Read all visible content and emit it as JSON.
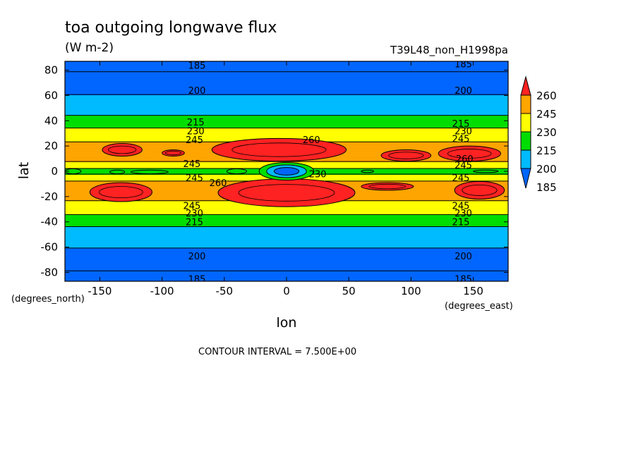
{
  "chart_data": {
    "type": "heatmap",
    "title": "toa outgoing longwave flux",
    "subtitle": "(W m-2)",
    "run_label": "T39L48_non_H1998pa",
    "xlabel": "lon",
    "ylabel": "lat",
    "x_unit_label": "(degrees_east)",
    "y_unit_label": "(degrees_north)",
    "contour_interval_text": "CONTOUR INTERVAL = 7.500E+00",
    "xlim": [
      -178,
      178
    ],
    "ylim": [
      -87,
      87
    ],
    "x_ticks": [
      -150,
      -100,
      -50,
      0,
      50,
      100,
      150
    ],
    "x_tick_labels": [
      "-150",
      "-100",
      "-50",
      "0",
      "50",
      "100",
      "150"
    ],
    "y_ticks": [
      80,
      60,
      40,
      20,
      0,
      -20,
      -40,
      -60,
      -80
    ],
    "y_tick_labels": [
      "80",
      "60",
      "40",
      "20",
      "0",
      "-20",
      "-40",
      "-60",
      "-80"
    ],
    "colorbar_levels": [
      185,
      200,
      215,
      230,
      245,
      260
    ],
    "colorbar_labels": [
      "260",
      "245",
      "230",
      "215",
      "200",
      "185"
    ],
    "colors": [
      "#0066ff",
      "#00bbff",
      "#00dd00",
      "#ffff00",
      "#ffa500",
      "#ff2222"
    ],
    "lat_profile": [
      [
        -87,
        176
      ],
      [
        -78,
        186
      ],
      [
        -66,
        195
      ],
      [
        -55,
        205
      ],
      [
        -45,
        213
      ],
      [
        -38,
        224
      ],
      [
        -32,
        233
      ],
      [
        -26,
        241
      ],
      [
        -20,
        249
      ],
      [
        -13,
        251
      ],
      [
        -8,
        246
      ],
      [
        -4,
        236
      ],
      [
        0,
        220
      ],
      [
        4,
        236
      ],
      [
        8,
        246
      ],
      [
        14,
        251
      ],
      [
        20,
        250
      ],
      [
        26,
        241
      ],
      [
        32,
        234
      ],
      [
        38,
        224
      ],
      [
        45,
        214
      ],
      [
        55,
        205
      ],
      [
        66,
        195
      ],
      [
        78,
        186
      ],
      [
        87,
        176
      ]
    ],
    "warm_regions": [
      {
        "lon": [
          -158,
          -108
        ],
        "lat": [
          -24,
          -9
        ]
      },
      {
        "lon": [
          -55,
          55
        ],
        "lat": [
          -28,
          -6
        ]
      },
      {
        "lon": [
          60,
          102
        ],
        "lat": [
          -15,
          -9
        ]
      },
      {
        "lon": [
          135,
          175
        ],
        "lat": [
          -22,
          -8
        ]
      },
      {
        "lon": [
          -148,
          -116
        ],
        "lat": [
          12,
          22
        ]
      },
      {
        "lon": [
          -100,
          -82
        ],
        "lat": [
          12,
          17
        ]
      },
      {
        "lon": [
          -60,
          48
        ],
        "lat": [
          8,
          26
        ]
      },
      {
        "lon": [
          76,
          116
        ],
        "lat": [
          8,
          17
        ]
      },
      {
        "lon": [
          122,
          172
        ],
        "lat": [
          8,
          20
        ]
      }
    ],
    "cool_regions": [
      {
        "lon": [
          -178,
          -165
        ],
        "lat": [
          -2,
          2
        ],
        "level": 215
      },
      {
        "lon": [
          -142,
          -130
        ],
        "lat": [
          -2,
          1
        ],
        "level": 215
      },
      {
        "lon": [
          -125,
          -95
        ],
        "lat": [
          -2,
          1
        ],
        "level": 215
      },
      {
        "lon": [
          -22,
          22
        ],
        "lat": [
          -7,
          7
        ],
        "level": 215
      },
      {
        "lon": [
          -16,
          16
        ],
        "lat": [
          -5,
          5
        ],
        "level": 200
      },
      {
        "lon": [
          -10,
          10
        ],
        "lat": [
          -3,
          3
        ],
        "level": 185
      },
      {
        "lon": [
          -48,
          -32
        ],
        "lat": [
          -2,
          2
        ],
        "level": 215
      },
      {
        "lon": [
          60,
          70
        ],
        "lat": [
          -1,
          1
        ],
        "level": 215
      },
      {
        "lon": [
          150,
          170
        ],
        "lat": [
          -1,
          1
        ],
        "level": 215
      }
    ],
    "contour_labels": [
      {
        "text": "185",
        "lon": -72,
        "lat": 84
      },
      {
        "text": "200",
        "lon": -72,
        "lat": 64
      },
      {
        "text": "215",
        "lon": -73,
        "lat": 39
      },
      {
        "text": "230",
        "lon": -73,
        "lat": 32
      },
      {
        "text": "245",
        "lon": -74,
        "lat": 25
      },
      {
        "text": "260",
        "lon": 20,
        "lat": 25
      },
      {
        "text": "245",
        "lon": -76,
        "lat": 6
      },
      {
        "text": "245",
        "lon": -74,
        "lat": -5
      },
      {
        "text": "260",
        "lon": -55,
        "lat": -9
      },
      {
        "text": "230",
        "lon": 25,
        "lat": -2
      },
      {
        "text": "245",
        "lon": -76,
        "lat": -27
      },
      {
        "text": "230",
        "lon": -74,
        "lat": -33
      },
      {
        "text": "215",
        "lon": -74,
        "lat": -40
      },
      {
        "text": "200",
        "lon": -72,
        "lat": -67
      },
      {
        "text": "185",
        "lon": -72,
        "lat": -85
      },
      {
        "text": "185",
        "lon": 142,
        "lat": 85
      },
      {
        "text": "200",
        "lon": 142,
        "lat": 64
      },
      {
        "text": "215",
        "lon": 140,
        "lat": 38
      },
      {
        "text": "230",
        "lon": 142,
        "lat": 32
      },
      {
        "text": "245",
        "lon": 140,
        "lat": 26
      },
      {
        "text": "260",
        "lon": 143,
        "lat": 10
      },
      {
        "text": "245",
        "lon": 142,
        "lat": 5
      },
      {
        "text": "245",
        "lon": 140,
        "lat": -5
      },
      {
        "text": "245",
        "lon": 140,
        "lat": -27
      },
      {
        "text": "230",
        "lon": 142,
        "lat": -33
      },
      {
        "text": "215",
        "lon": 140,
        "lat": -40
      },
      {
        "text": "200",
        "lon": 142,
        "lat": -67
      },
      {
        "text": "185",
        "lon": 142,
        "lat": -85
      }
    ]
  }
}
